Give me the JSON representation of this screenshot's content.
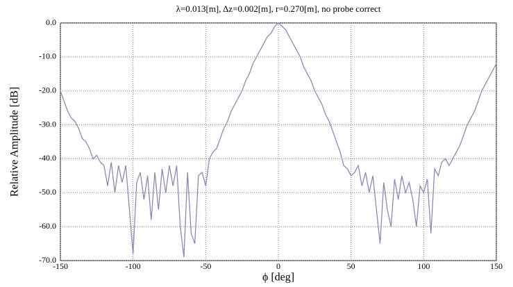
{
  "chart_data": {
    "type": "line",
    "title": "λ=0.013[m],  Δz=0.002[m],  r=0.270[m], no probe correct",
    "xlabel": "ϕ [deg]",
    "ylabel": "Relative Amplitude [dB]",
    "xlim": [
      -150,
      150
    ],
    "ylim": [
      -70,
      0
    ],
    "xticks": [
      -150,
      -100,
      -50,
      0,
      50,
      100,
      150
    ],
    "yticks": [
      {
        "value": 0,
        "label": "0.0"
      },
      {
        "value": -10,
        "label": "-10.0"
      },
      {
        "value": -20,
        "label": "-20.0"
      },
      {
        "value": -30,
        "label": "-30.0"
      },
      {
        "value": -40,
        "label": "-40.0"
      },
      {
        "value": -50,
        "label": "-50.0"
      },
      {
        "value": -60,
        "label": "-60.0"
      },
      {
        "value": -70,
        "label": "-70.0"
      }
    ],
    "grid": true,
    "x": [
      -150,
      -147.5,
      -145,
      -142.5,
      -140,
      -137.5,
      -135,
      -132.5,
      -130,
      -127.5,
      -125,
      -122.5,
      -120,
      -117.5,
      -115,
      -112.5,
      -110,
      -107.5,
      -105,
      -102.5,
      -100,
      -97.5,
      -95,
      -92.5,
      -90,
      -87.5,
      -85,
      -82.5,
      -80,
      -77.5,
      -75,
      -72.5,
      -70,
      -67.5,
      -65,
      -62.5,
      -60,
      -57.5,
      -55,
      -52.5,
      -50,
      -47.5,
      -45,
      -42.5,
      -40,
      -37.5,
      -35,
      -32.5,
      -30,
      -27.5,
      -25,
      -22.5,
      -20,
      -17.5,
      -15,
      -12.5,
      -10,
      -7.5,
      -5,
      -2.5,
      0,
      2.5,
      5,
      7.5,
      10,
      12.5,
      15,
      17.5,
      20,
      22.5,
      25,
      27.5,
      30,
      32.5,
      35,
      37.5,
      40,
      42.5,
      45,
      47.5,
      50,
      52.5,
      55,
      57.5,
      60,
      62.5,
      65,
      67.5,
      70,
      72.5,
      75,
      77.5,
      80,
      82.5,
      85,
      87.5,
      90,
      92.5,
      95,
      97.5,
      100,
      102.5,
      105,
      107.5,
      110,
      112.5,
      115,
      117.5,
      120,
      122.5,
      125,
      127.5,
      130,
      132.5,
      135,
      137.5,
      140,
      142.5,
      145,
      147.5,
      150
    ],
    "series": [
      {
        "color": "#8a8ab4",
        "values": [
          -20,
          -23,
          -26,
          -28,
          -29,
          -31,
          -34,
          -35,
          -37,
          -40,
          -39,
          -41,
          -42,
          -48,
          -41,
          -50,
          -42,
          -47,
          -42,
          -55,
          -68,
          -47,
          -44,
          -52,
          -45,
          -58,
          -44,
          -55,
          -43,
          -50,
          -42,
          -48,
          -42,
          -60,
          -69,
          -44,
          -62,
          -65,
          -45,
          -44,
          -48,
          -40,
          -38,
          -37,
          -34,
          -31,
          -29,
          -26,
          -24,
          -22,
          -20,
          -17,
          -15,
          -12,
          -10,
          -8,
          -6,
          -4,
          -3,
          -1,
          0,
          -1,
          -2,
          -4,
          -6,
          -8,
          -10,
          -13,
          -15,
          -17,
          -20,
          -22,
          -24,
          -27,
          -29,
          -32,
          -35,
          -38,
          -42,
          -43,
          -45,
          -44,
          -42,
          -48,
          -44,
          -50,
          -45,
          -55,
          -65,
          -47,
          -55,
          -60,
          -46,
          -52,
          -45,
          -50,
          -47,
          -52,
          -60,
          -48,
          -50,
          -46,
          -62,
          -43,
          -45,
          -41,
          -40,
          -42,
          -40,
          -38,
          -36,
          -33,
          -30,
          -28,
          -26,
          -23,
          -20,
          -18,
          -16,
          -14,
          -12
        ]
      }
    ]
  }
}
